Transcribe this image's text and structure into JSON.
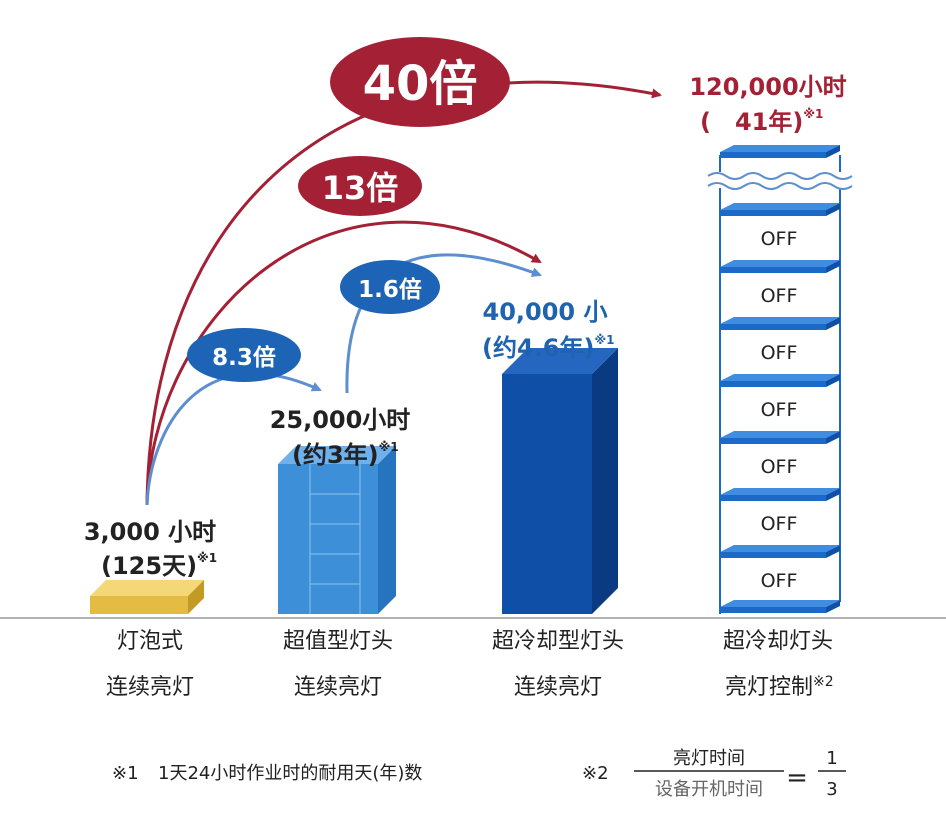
{
  "chart_data": {
    "type": "bar",
    "title": "",
    "xlabel": "",
    "ylabel": "",
    "categories": [
      {
        "line1": "灯泡式",
        "line2": "连续亮灯"
      },
      {
        "line1": "超值型灯头",
        "line2": "连续亮灯"
      },
      {
        "line1": "超冷却型灯头",
        "line2": "连续亮灯"
      },
      {
        "line1": "超冷却灯头",
        "line2": "亮灯控制",
        "line2_mark": "※2"
      }
    ],
    "values": [
      3000,
      25000,
      40000,
      120000
    ],
    "unit": "小时",
    "value_labels": [
      {
        "line1": "3,000 小时",
        "line2": "(125天)",
        "mark": "※1"
      },
      {
        "line1": "25,000小时",
        "line2": "(约3年)",
        "mark": "※1"
      },
      {
        "line1": "40,000 小",
        "line2": "(约4.6年)",
        "mark": "※1"
      },
      {
        "line1": "120,000小时",
        "line2": "(　41年)",
        "mark": "※1"
      }
    ],
    "off_labels": [
      "OFF",
      "OFF",
      "OFF",
      "OFF",
      "OFF",
      "OFF",
      "OFF"
    ],
    "ratios": [
      {
        "label": "8.3倍",
        "from": 0,
        "to": 1
      },
      {
        "label": "1.6倍",
        "from": 1,
        "to": 2
      },
      {
        "label": "13倍",
        "from": 0,
        "to": 2
      },
      {
        "label": "40倍",
        "from": 0,
        "to": 3
      }
    ],
    "colors": {
      "bulb_front": "#e4bc44",
      "bulb_top": "#f4d878",
      "bulb_side": "#c29a24",
      "value_front": "#3d8fd8",
      "value_top": "#6fb1ea",
      "value_side": "#2673bf",
      "cool_front": "#0f4fa8",
      "cool_top": "#2566c0",
      "cool_side": "#0a3a82",
      "slab_front": "#1b6ac8",
      "slab_top": "#3f8ce0",
      "red": "#a32035",
      "blue_badge": "#1e64b6",
      "blue_arrow": "#5d8fd0"
    }
  },
  "footnotes": {
    "note1_mark": "※1",
    "note1_text": "1天24小时作业时的耐用天(年)数",
    "note2_mark": "※2",
    "note2_numerator": "亮灯时间",
    "note2_denominator": "设备开机时间",
    "note2_equals": "=",
    "note2_result_top": "1",
    "note2_result_bottom": "3"
  }
}
